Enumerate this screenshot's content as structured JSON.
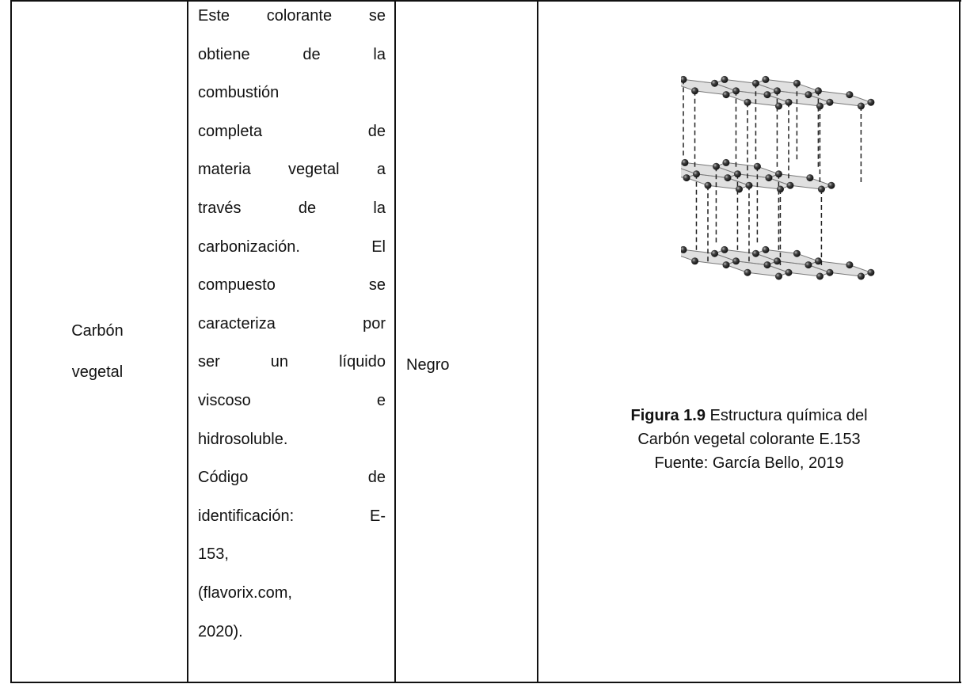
{
  "table": {
    "row": {
      "name": "Carbón vegetal",
      "description_lines": [
        "Este colorante se",
        "obtiene de la",
        "combustión",
        "completa de",
        "materia vegetal a",
        "través de la",
        "carbonización. El",
        "compuesto se",
        "caracteriza por",
        "ser un líquido",
        "viscoso e",
        "hidrosoluble.",
        "Código de",
        "identificación: E-",
        "153,",
        "(flavorix.com,",
        "2020)."
      ],
      "color": "Negro",
      "figure": {
        "label": "Figura 1.9",
        "caption_lines": [
          "Estructura química del",
          "Carbón vegetal colorante E.153"
        ],
        "source": "Fuente: García Bello, 2019"
      }
    }
  }
}
